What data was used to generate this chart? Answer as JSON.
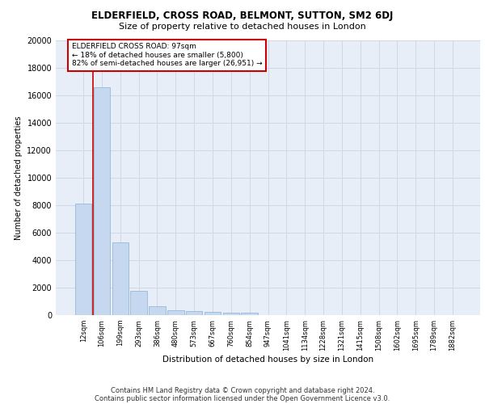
{
  "title1": "ELDERFIELD, CROSS ROAD, BELMONT, SUTTON, SM2 6DJ",
  "title2": "Size of property relative to detached houses in London",
  "xlabel": "Distribution of detached houses by size in London",
  "ylabel": "Number of detached properties",
  "categories": [
    "12sqm",
    "106sqm",
    "199sqm",
    "293sqm",
    "386sqm",
    "480sqm",
    "573sqm",
    "667sqm",
    "760sqm",
    "854sqm",
    "947sqm",
    "1041sqm",
    "1134sqm",
    "1228sqm",
    "1321sqm",
    "1415sqm",
    "1508sqm",
    "1602sqm",
    "1695sqm",
    "1789sqm",
    "1882sqm"
  ],
  "values": [
    8100,
    16600,
    5300,
    1750,
    650,
    350,
    270,
    220,
    180,
    160,
    0,
    0,
    0,
    0,
    0,
    0,
    0,
    0,
    0,
    0,
    0
  ],
  "bar_color": "#c5d8ef",
  "bar_edge_color": "#8ab0d0",
  "annotation_text": "ELDERFIELD CROSS ROAD: 97sqm\n← 18% of detached houses are smaller (5,800)\n82% of semi-detached houses are larger (26,951) →",
  "annotation_box_color": "#ffffff",
  "annotation_box_edge_color": "#cc0000",
  "vline_color": "#cc0000",
  "footer1": "Contains HM Land Registry data © Crown copyright and database right 2024.",
  "footer2": "Contains public sector information licensed under the Open Government Licence v3.0.",
  "ylim": [
    0,
    20000
  ],
  "yticks": [
    0,
    2000,
    4000,
    6000,
    8000,
    10000,
    12000,
    14000,
    16000,
    18000,
    20000
  ],
  "grid_color": "#d0d8e8",
  "bg_color": "#e8eef8",
  "fig_width": 6.0,
  "fig_height": 5.0,
  "dpi": 100
}
